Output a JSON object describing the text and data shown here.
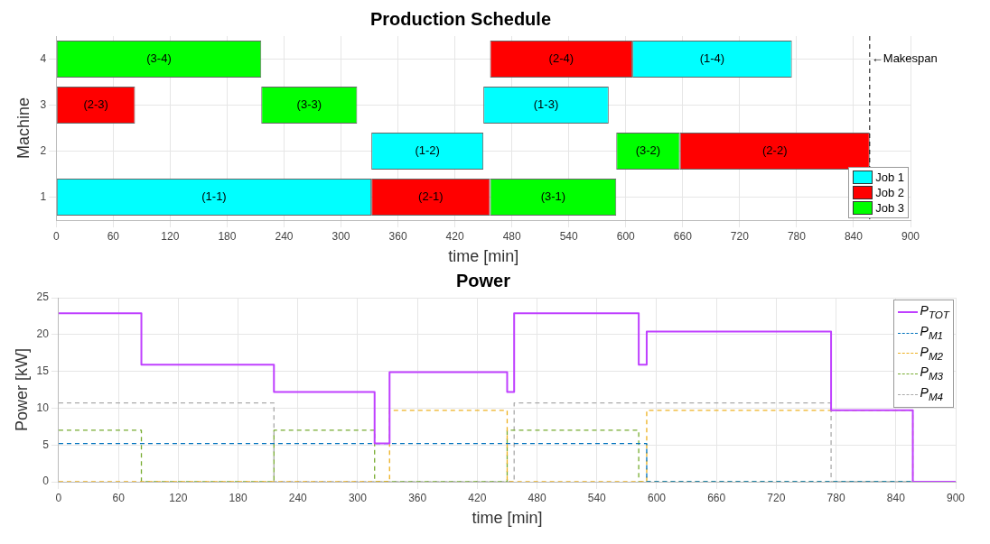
{
  "chart_data": [
    {
      "type": "bar",
      "title": "Production Schedule",
      "xlabel": "time [min]",
      "ylabel": "Machine",
      "orientation": "horizontal",
      "categories": [
        "4",
        "3",
        "2",
        "1"
      ],
      "series": [
        {
          "name": "Job 1",
          "color": "#00ffff",
          "values": [
            168,
            132,
            118,
            332
          ],
          "base": [
            607,
            450,
            332,
            0
          ],
          "value_labels": [
            "(1-4)",
            "(1-3)",
            "(1-2)",
            "(1-1)"
          ]
        },
        {
          "name": "Job 2",
          "color": "#ff0000",
          "values": [
            150,
            83,
            200,
            125
          ],
          "base": [
            457,
            0,
            657,
            332
          ],
          "value_labels": [
            "(2-4)",
            "(2-3)",
            "(2-2)",
            "(2-1)"
          ]
        },
        {
          "name": "Job 3",
          "color": "#00ff00",
          "values": [
            216,
            101,
            67,
            133
          ],
          "base": [
            0,
            216,
            590,
            457
          ],
          "value_labels": [
            "(3-4)",
            "(3-3)",
            "(3-2)",
            "(3-1)"
          ]
        }
      ],
      "xlim": [
        0,
        900
      ],
      "xticks": [
        0,
        60,
        120,
        180,
        240,
        300,
        360,
        420,
        480,
        540,
        600,
        660,
        720,
        780,
        840,
        900
      ],
      "grid": true,
      "legend": "bottom right",
      "ref_lines": [
        {
          "axis": "x",
          "value": 857,
          "label": "←Makespan",
          "color": "#000000",
          "line_style": "dashed"
        }
      ]
    },
    {
      "type": "step",
      "title": "Power",
      "xlabel": "time [min]",
      "ylabel": "Power [kW]",
      "series": [
        {
          "name": "P$_{TOT}$",
          "color": "#bf40ff",
          "line_style": "solid",
          "x": [
            0,
            83,
            216,
            317,
            332,
            450,
            457,
            582,
            590,
            775,
            857,
            900
          ],
          "values": [
            22.9,
            15.9,
            12.2,
            5.2,
            14.9,
            12.2,
            22.9,
            15.9,
            20.4,
            9.7,
            0,
            0
          ]
        },
        {
          "name": "P$_{M1}$",
          "color": "#0072bd",
          "line_style": "dashed",
          "x": [
            0,
            590,
            900
          ],
          "values": [
            5.2,
            0,
            0
          ]
        },
        {
          "name": "P$_{M2}$",
          "color": "#edb120",
          "line_style": "dashed",
          "x": [
            0,
            332,
            450,
            590,
            857,
            900
          ],
          "values": [
            0,
            9.7,
            0,
            9.7,
            0,
            0
          ]
        },
        {
          "name": "P$_{M3}$",
          "color": "#77ac30",
          "line_style": "dashed",
          "x": [
            0,
            83,
            216,
            317,
            450,
            582,
            900
          ],
          "values": [
            7,
            0,
            7,
            0,
            7,
            0,
            0
          ]
        },
        {
          "name": "P$_{M4}$",
          "color": "#aaaaaa",
          "line_style": "dashed",
          "x": [
            0,
            216,
            457,
            775,
            900
          ],
          "values": [
            10.7,
            0,
            10.7,
            0,
            0
          ]
        }
      ],
      "xlim": [
        0,
        900
      ],
      "xticks": [
        0,
        60,
        120,
        180,
        240,
        300,
        360,
        420,
        480,
        540,
        600,
        660,
        720,
        780,
        840,
        900
      ],
      "ylim": [
        0,
        25
      ],
      "yticks": [
        0,
        5,
        10,
        15,
        20,
        25
      ],
      "grid": true,
      "legend": "top right",
      "marker": "none"
    }
  ]
}
